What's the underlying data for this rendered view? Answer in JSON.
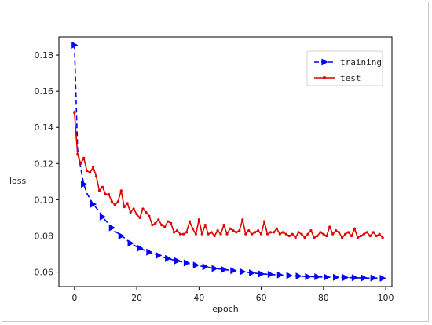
{
  "chart_data": {
    "type": "line",
    "xlabel": "epoch",
    "ylabel": "loss",
    "xlim": [
      -5,
      102
    ],
    "ylim": [
      0.052,
      0.19
    ],
    "xticks": [
      0,
      20,
      40,
      60,
      80,
      100
    ],
    "yticks": [
      0.06,
      0.08,
      0.1,
      0.12,
      0.14,
      0.16,
      0.18
    ],
    "ytick_labels": [
      "0.06",
      "0.08",
      "0.10",
      "0.12",
      "0.14",
      "0.16",
      "0.18"
    ],
    "xtick_labels": [
      "0",
      "20",
      "40",
      "60",
      "80",
      "100"
    ],
    "legend_position": "top-right",
    "grid": false,
    "series": [
      {
        "name": "training",
        "color": "#0000ff",
        "style": "dashed-triangle",
        "marker_every": 3,
        "x": [
          0,
          1,
          2,
          3,
          4,
          5,
          6,
          7,
          8,
          9,
          10,
          11,
          12,
          13,
          14,
          15,
          16,
          17,
          18,
          19,
          20,
          21,
          22,
          23,
          24,
          25,
          26,
          27,
          28,
          29,
          30,
          31,
          32,
          33,
          34,
          35,
          36,
          37,
          38,
          39,
          40,
          41,
          42,
          43,
          44,
          45,
          46,
          47,
          48,
          49,
          50,
          51,
          52,
          53,
          54,
          55,
          56,
          57,
          58,
          59,
          60,
          61,
          62,
          63,
          64,
          65,
          66,
          67,
          68,
          69,
          70,
          71,
          72,
          73,
          74,
          75,
          76,
          77,
          78,
          79,
          80,
          81,
          82,
          83,
          84,
          85,
          86,
          87,
          88,
          89,
          90,
          91,
          92,
          93,
          94,
          95,
          96,
          97,
          98,
          99
        ],
        "values": [
          0.1855,
          0.128,
          0.1175,
          0.1085,
          0.1035,
          0.1005,
          0.0975,
          0.0955,
          0.0935,
          0.0905,
          0.0885,
          0.0865,
          0.0845,
          0.0825,
          0.0815,
          0.08,
          0.079,
          0.0775,
          0.076,
          0.075,
          0.074,
          0.0732,
          0.0724,
          0.0716,
          0.071,
          0.0704,
          0.0698,
          0.0692,
          0.0686,
          0.068,
          0.0675,
          0.067,
          0.0666,
          0.0662,
          0.0658,
          0.0654,
          0.065,
          0.0646,
          0.0642,
          0.0638,
          0.0635,
          0.0632,
          0.0629,
          0.0626,
          0.0623,
          0.062,
          0.0618,
          0.0616,
          0.0614,
          0.0612,
          0.061,
          0.0608,
          0.0606,
          0.0604,
          0.0602,
          0.06,
          0.0598,
          0.0596,
          0.0594,
          0.0592,
          0.059,
          0.0589,
          0.0588,
          0.0587,
          0.0586,
          0.0585,
          0.0584,
          0.0583,
          0.0582,
          0.0581,
          0.058,
          0.0579,
          0.0578,
          0.0577,
          0.0576,
          0.0575,
          0.0575,
          0.0574,
          0.0574,
          0.0573,
          0.0573,
          0.0572,
          0.0572,
          0.0571,
          0.0571,
          0.057,
          0.057,
          0.057,
          0.0569,
          0.0569,
          0.0569,
          0.0568,
          0.0568,
          0.0568,
          0.0567,
          0.0567,
          0.0567,
          0.0567,
          0.0566,
          0.0566
        ]
      },
      {
        "name": "test",
        "color": "#e00000",
        "style": "solid-dot",
        "x": [
          0,
          1,
          2,
          3,
          4,
          5,
          6,
          7,
          8,
          9,
          10,
          11,
          12,
          13,
          14,
          15,
          16,
          17,
          18,
          19,
          20,
          21,
          22,
          23,
          24,
          25,
          26,
          27,
          28,
          29,
          30,
          31,
          32,
          33,
          34,
          35,
          36,
          37,
          38,
          39,
          40,
          41,
          42,
          43,
          44,
          45,
          46,
          47,
          48,
          49,
          50,
          51,
          52,
          53,
          54,
          55,
          56,
          57,
          58,
          59,
          60,
          61,
          62,
          63,
          64,
          65,
          66,
          67,
          68,
          69,
          70,
          71,
          72,
          73,
          74,
          75,
          76,
          77,
          78,
          79,
          80,
          81,
          82,
          83,
          84,
          85,
          86,
          87,
          88,
          89,
          90,
          91,
          92,
          93,
          94,
          95,
          96,
          97,
          98,
          99
        ],
        "values": [
          0.148,
          0.125,
          0.12,
          0.123,
          0.116,
          0.115,
          0.118,
          0.113,
          0.105,
          0.107,
          0.103,
          0.103,
          0.099,
          0.097,
          0.099,
          0.105,
          0.096,
          0.098,
          0.093,
          0.095,
          0.092,
          0.09,
          0.095,
          0.093,
          0.091,
          0.086,
          0.087,
          0.089,
          0.086,
          0.085,
          0.088,
          0.087,
          0.082,
          0.083,
          0.081,
          0.081,
          0.082,
          0.088,
          0.084,
          0.081,
          0.089,
          0.081,
          0.086,
          0.081,
          0.082,
          0.08,
          0.083,
          0.081,
          0.086,
          0.081,
          0.084,
          0.083,
          0.082,
          0.083,
          0.089,
          0.081,
          0.083,
          0.081,
          0.082,
          0.083,
          0.081,
          0.088,
          0.081,
          0.082,
          0.082,
          0.084,
          0.081,
          0.082,
          0.081,
          0.08,
          0.081,
          0.079,
          0.082,
          0.081,
          0.079,
          0.081,
          0.083,
          0.079,
          0.08,
          0.082,
          0.081,
          0.08,
          0.085,
          0.081,
          0.083,
          0.082,
          0.079,
          0.081,
          0.082,
          0.08,
          0.084,
          0.079,
          0.08,
          0.081,
          0.082,
          0.08,
          0.082,
          0.08,
          0.081,
          0.079
        ]
      }
    ]
  }
}
